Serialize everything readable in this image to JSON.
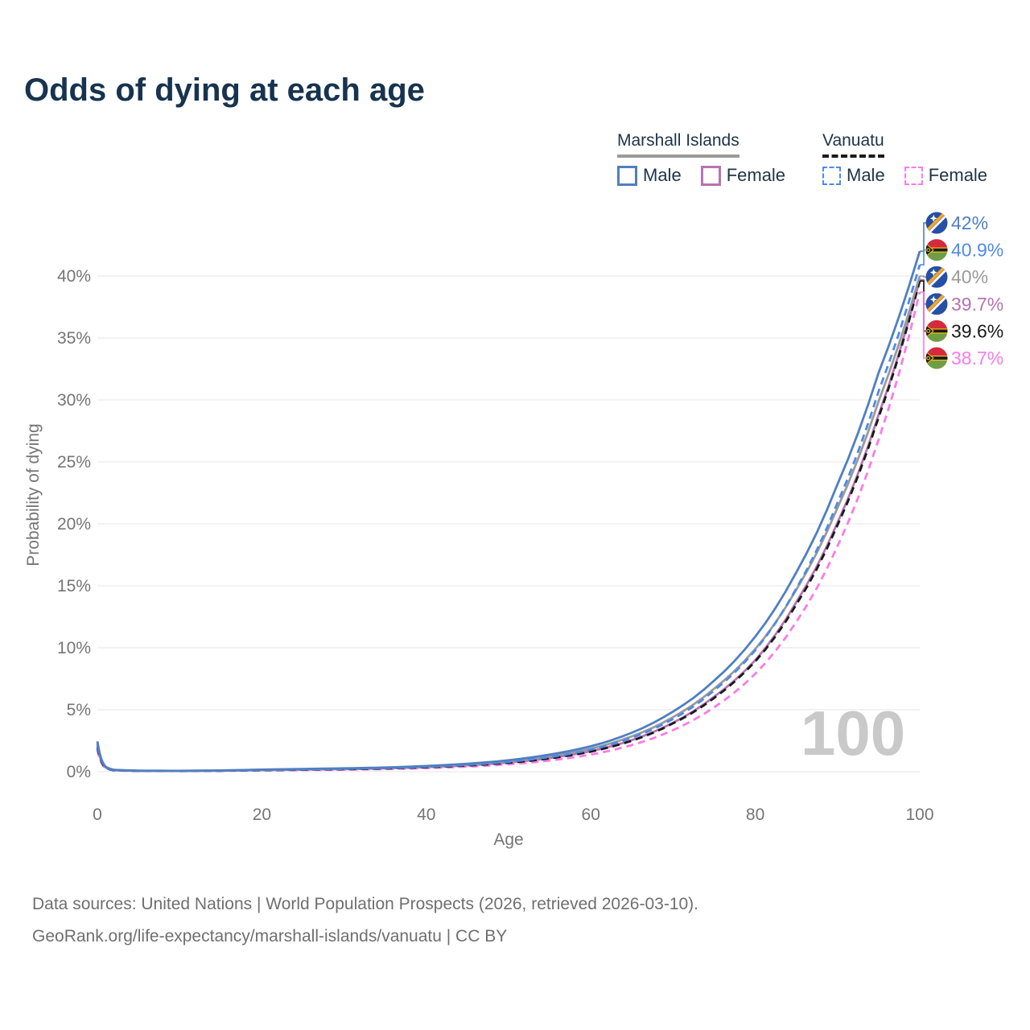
{
  "header": {
    "title": "Odds of dying at each age"
  },
  "legend": {
    "marshall": {
      "name": "Marshall Islands",
      "male": "Male",
      "female": "Female"
    },
    "vanuatu": {
      "name": "Vanuatu",
      "male": "Male",
      "female": "Female"
    }
  },
  "watermark": "100",
  "footer": {
    "line1": "Data sources: United Nations | World Population Prospects (2026, retrieved 2026-03-10).",
    "line2": "GeoRank.org/life-expectancy/marshall-islands/vanuatu | CC BY"
  },
  "colors": {
    "title_text": "#17334f",
    "legend_text": "#1e3448",
    "axis_text": "#757575",
    "gridline": "#ebebeb",
    "watermark": "#c9c9c9",
    "footer_text": "#6f6f6f",
    "marshall_male": "#4f7fc2",
    "marshall_female": "#b673b3",
    "marshall_total": "#9a9a9a",
    "vanuatu_male": "#4e8ae8",
    "vanuatu_female": "#fb7ae8",
    "vanuatu_total": "#1a1a1a"
  },
  "chart_data": {
    "type": "line",
    "title": "Odds of dying at each age",
    "xlabel": "Age",
    "ylabel": "Probability of dying",
    "xlim": [
      0,
      100
    ],
    "ylim": [
      0,
      42
    ],
    "xticks": [
      0,
      20,
      40,
      60,
      80,
      100
    ],
    "yticks": [
      0,
      5,
      10,
      15,
      20,
      25,
      30,
      35,
      40
    ],
    "ytick_suffix": "%",
    "grid": "horizontal",
    "legend_position": "top-right",
    "x": [
      0,
      1,
      2,
      5,
      10,
      15,
      20,
      25,
      30,
      35,
      40,
      45,
      50,
      55,
      60,
      65,
      70,
      75,
      80,
      85,
      90,
      95,
      100
    ],
    "series": [
      {
        "name": "Marshall Islands Male",
        "country": "Marshall Islands",
        "sex": "male",
        "style": "solid",
        "color": "#4f7fc2",
        "flag": "marshall-islands",
        "end_label": "42%",
        "values": [
          2.45,
          0.4,
          0.15,
          0.08,
          0.07,
          0.1,
          0.17,
          0.22,
          0.27,
          0.34,
          0.46,
          0.64,
          0.92,
          1.38,
          2.05,
          3.15,
          4.85,
          7.35,
          10.9,
          16.1,
          23.2,
          32.2,
          42.0
        ]
      },
      {
        "name": "Vanuatu Male",
        "country": "Vanuatu",
        "sex": "male",
        "style": "dashed",
        "color": "#4e8ae8",
        "flag": "vanuatu",
        "end_label": "40.9%",
        "values": [
          2.1,
          0.35,
          0.13,
          0.07,
          0.06,
          0.09,
          0.14,
          0.18,
          0.23,
          0.29,
          0.4,
          0.55,
          0.8,
          1.18,
          1.78,
          2.75,
          4.25,
          6.55,
          9.8,
          14.8,
          21.7,
          30.7,
          40.9
        ]
      },
      {
        "name": "Marshall Islands Both sexes",
        "country": "Marshall Islands",
        "sex": "total",
        "style": "solid",
        "color": "#9a9a9a",
        "flag": "marshall-islands",
        "end_label": "40%",
        "values": [
          2.3,
          0.38,
          0.14,
          0.075,
          0.065,
          0.09,
          0.15,
          0.2,
          0.25,
          0.31,
          0.42,
          0.58,
          0.83,
          1.24,
          1.85,
          2.85,
          4.4,
          6.7,
          9.9,
          14.7,
          21.3,
          29.9,
          40.0
        ]
      },
      {
        "name": "Marshall Islands Female",
        "country": "Marshall Islands",
        "sex": "female",
        "style": "solid",
        "color": "#b673b3",
        "flag": "marshall-islands",
        "end_label": "39.7%",
        "values": [
          2.15,
          0.35,
          0.13,
          0.07,
          0.06,
          0.08,
          0.13,
          0.17,
          0.21,
          0.27,
          0.37,
          0.51,
          0.74,
          1.1,
          1.65,
          2.55,
          3.95,
          6.05,
          9.0,
          13.7,
          20.1,
          28.8,
          39.7
        ]
      },
      {
        "name": "Vanuatu Both sexes",
        "country": "Vanuatu",
        "sex": "total",
        "style": "dashed",
        "color": "#1a1a1a",
        "flag": "vanuatu",
        "end_label": "39.6%",
        "values": [
          1.95,
          0.32,
          0.12,
          0.065,
          0.055,
          0.08,
          0.12,
          0.16,
          0.2,
          0.26,
          0.36,
          0.5,
          0.72,
          1.07,
          1.62,
          2.5,
          3.9,
          5.95,
          8.9,
          13.5,
          19.9,
          28.6,
          39.6
        ]
      },
      {
        "name": "Vanuatu Female",
        "country": "Vanuatu",
        "sex": "female",
        "style": "dashed",
        "color": "#fb7ae8",
        "flag": "vanuatu",
        "end_label": "38.7%",
        "values": [
          1.75,
          0.28,
          0.1,
          0.055,
          0.05,
          0.065,
          0.1,
          0.13,
          0.16,
          0.21,
          0.29,
          0.41,
          0.6,
          0.9,
          1.38,
          2.15,
          3.35,
          5.2,
          7.9,
          12.1,
          18.2,
          26.8,
          38.7
        ]
      }
    ]
  }
}
